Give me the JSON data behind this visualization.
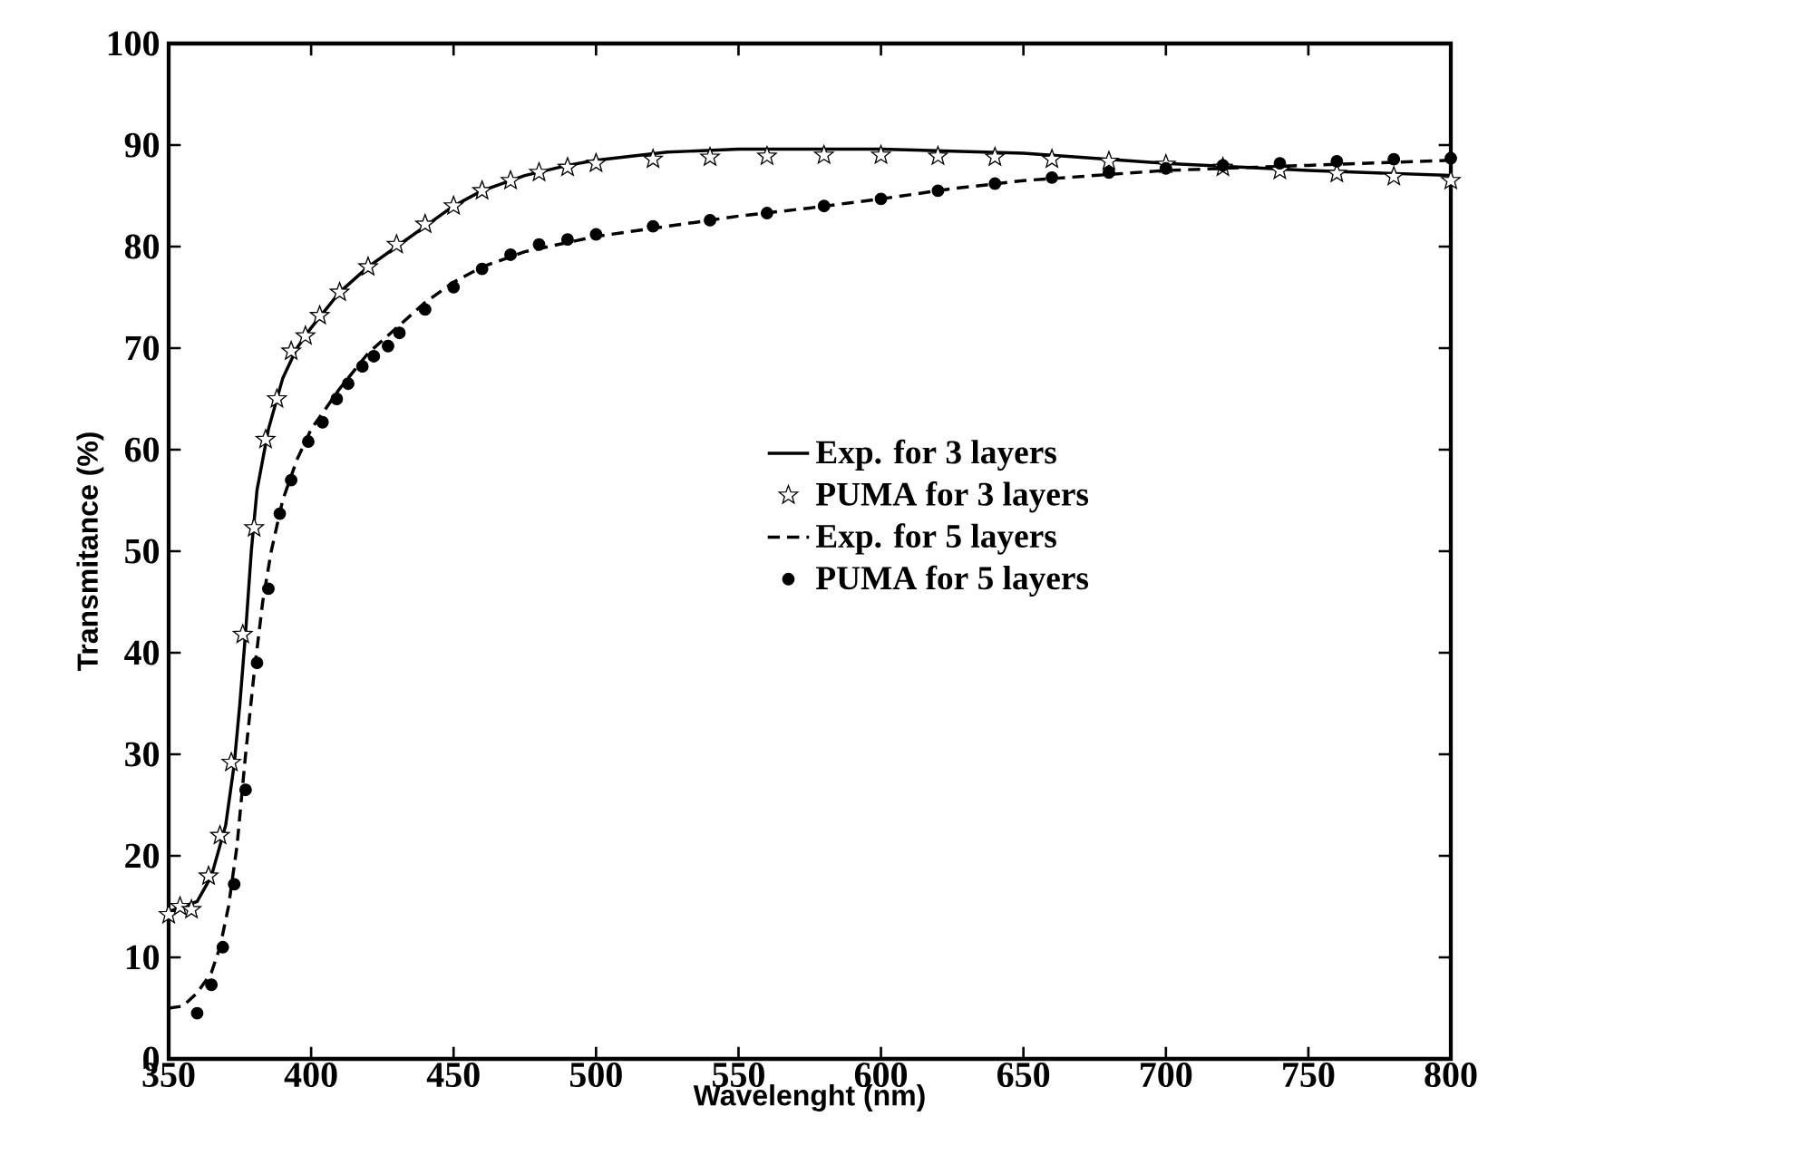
{
  "chart_data": {
    "type": "line",
    "xlabel": "Wavelenght (nm)",
    "ylabel": "Transmitance (%)",
    "xlim": [
      350,
      800
    ],
    "ylim": [
      0,
      100
    ],
    "xticks": [
      350,
      400,
      450,
      500,
      550,
      600,
      650,
      700,
      750,
      800
    ],
    "yticks": [
      0,
      10,
      20,
      30,
      40,
      50,
      60,
      70,
      80,
      90,
      100
    ],
    "grid": false,
    "legend": "center",
    "series": [
      {
        "name": "Exp. for 3 layers",
        "color": "#000000",
        "marker": "none",
        "line_style": "solid",
        "x": [
          350,
          355,
          360,
          365,
          370,
          373,
          375,
          377,
          379,
          381,
          385,
          390,
          395,
          400,
          410,
          420,
          430,
          440,
          450,
          460,
          475,
          490,
          500,
          525,
          550,
          600,
          650,
          700,
          750,
          800
        ],
        "values": [
          14.5,
          15,
          15.5,
          18,
          23,
          29,
          35,
          42,
          50,
          56,
          62,
          67,
          70,
          72,
          75.5,
          78,
          80,
          82,
          84,
          85.5,
          87,
          88,
          88.5,
          89.3,
          89.6,
          89.6,
          89.2,
          88.2,
          87.5,
          87
        ]
      },
      {
        "name": "PUMA for 3 layers",
        "type": "scatter",
        "color": "#000000",
        "marker": "star",
        "x": [
          350,
          354,
          358,
          364,
          368,
          372,
          376,
          380,
          384,
          388,
          393,
          398,
          403,
          410,
          420,
          430,
          440,
          450,
          460,
          470,
          480,
          490,
          500,
          520,
          540,
          560,
          580,
          600,
          620,
          640,
          660,
          680,
          700,
          720,
          740,
          760,
          780,
          800
        ],
        "values": [
          14.2,
          15,
          14.7,
          18,
          22,
          29.2,
          41.8,
          52.3,
          61,
          65,
          69.7,
          71.2,
          73.2,
          75.5,
          78,
          80.2,
          82.2,
          84,
          85.5,
          86.5,
          87.3,
          87.8,
          88.2,
          88.6,
          88.8,
          88.9,
          89,
          89,
          88.9,
          88.8,
          88.6,
          88.4,
          88.1,
          87.8,
          87.5,
          87.2,
          86.9,
          86.5
        ]
      },
      {
        "name": "Exp. for 5 layers",
        "color": "#000000",
        "marker": "none",
        "line_style": "dashed",
        "x": [
          350,
          355,
          360,
          365,
          368,
          371,
          374,
          377,
          380,
          383,
          386,
          390,
          395,
          400,
          410,
          420,
          430,
          440,
          450,
          460,
          475,
          500,
          525,
          550,
          575,
          600,
          625,
          650,
          675,
          700,
          750,
          800
        ],
        "values": [
          5,
          5.2,
          6.5,
          8.5,
          11,
          15,
          21,
          30,
          38,
          45,
          50,
          55,
          59,
          62,
          66,
          69.5,
          72,
          74.5,
          76.5,
          78,
          79.5,
          81,
          82,
          83,
          83.8,
          84.7,
          85.7,
          86.5,
          87,
          87.5,
          88,
          88.5
        ]
      },
      {
        "name": "PUMA for 5 layers",
        "type": "scatter",
        "color": "#000000",
        "marker": "circle",
        "x": [
          360,
          365,
          369,
          373,
          377,
          381,
          385,
          389,
          393,
          399,
          404,
          409,
          413,
          418,
          422,
          427,
          431,
          440,
          450,
          460,
          470,
          480,
          490,
          500,
          520,
          540,
          560,
          580,
          600,
          620,
          640,
          660,
          680,
          700,
          720,
          740,
          760,
          780,
          800
        ],
        "values": [
          4.5,
          7.3,
          11,
          17.2,
          26.5,
          39,
          46.3,
          53.7,
          57,
          60.8,
          62.7,
          65,
          66.5,
          68.2,
          69.2,
          70.2,
          71.5,
          73.8,
          76,
          77.8,
          79.2,
          80.2,
          80.7,
          81.2,
          82,
          82.6,
          83.3,
          84,
          84.7,
          85.5,
          86.2,
          86.8,
          87.3,
          87.7,
          88,
          88.2,
          88.4,
          88.6,
          88.7
        ]
      }
    ]
  }
}
